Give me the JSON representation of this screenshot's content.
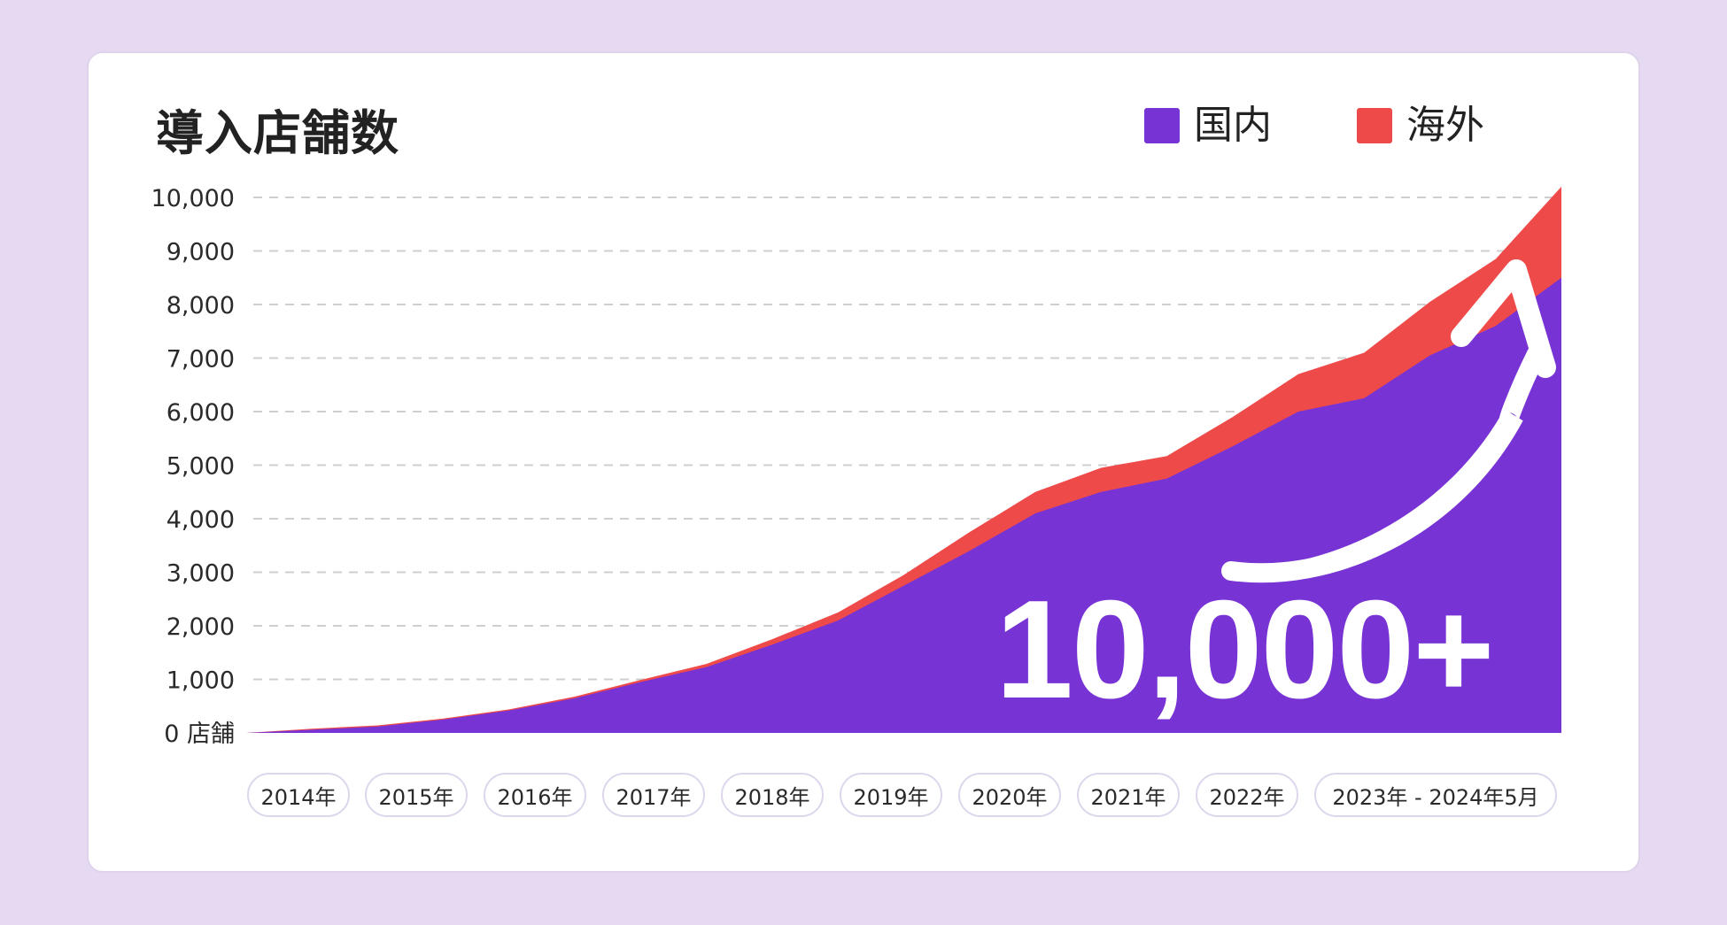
{
  "colors": {
    "background": "#e6daf2",
    "domestic": "#7733d4",
    "overseas": "#ef4a4a",
    "grid": "#cfcfcf"
  },
  "title": "導入店舗数",
  "legend": [
    {
      "label": "国内",
      "color": "#7733d4"
    },
    {
      "label": "海外",
      "color": "#ef4a4a"
    }
  ],
  "highlight": {
    "text": "10,000+",
    "icon": "curved-arrow-up-icon"
  },
  "year_pills": [
    "2014年",
    "2015年",
    "2016年",
    "2017年",
    "2018年",
    "2019年",
    "2020年",
    "2021年",
    "2022年",
    "2023年 - 2024年5月"
  ],
  "chart_data": {
    "type": "area",
    "stacked": true,
    "title": "導入店舗数",
    "grid": true,
    "legend_position": "top-right",
    "ylim": [
      0,
      10000
    ],
    "yticks": [
      "0 店舗",
      "1,000",
      "2,000",
      "3,000",
      "4,000",
      "5,000",
      "6,000",
      "7,000",
      "8,000",
      "9,000",
      "10,000"
    ],
    "x": [
      "2014年",
      "2014.5",
      "2015年",
      "2015.5",
      "2016年",
      "2016.5",
      "2017年",
      "2017.5",
      "2018年",
      "2018.5",
      "2019年",
      "2019.5",
      "2020年",
      "2020.5",
      "2021年",
      "2021.5",
      "2022年",
      "2022.5",
      "2023年",
      "2023.5",
      "2024年5月"
    ],
    "series": [
      {
        "name": "国内",
        "values": [
          0,
          60,
          120,
          250,
          420,
          650,
          950,
          1230,
          1650,
          2100,
          2750,
          3400,
          4100,
          4500,
          4750,
          5350,
          6000,
          6250,
          7050,
          7600,
          8500
        ]
      },
      {
        "name": "海外",
        "values": [
          0,
          20,
          20,
          20,
          20,
          30,
          40,
          60,
          100,
          150,
          200,
          350,
          400,
          450,
          420,
          550,
          700,
          850,
          1000,
          1250,
          1700
        ]
      }
    ]
  }
}
